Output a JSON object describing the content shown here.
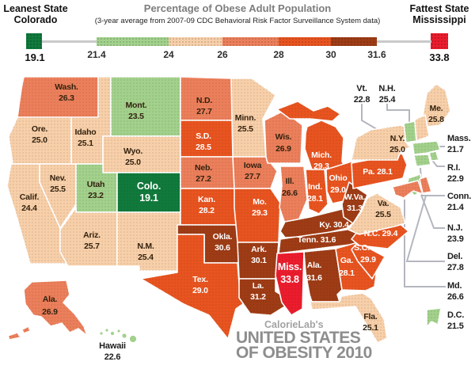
{
  "header": {
    "leanest": {
      "label": "Leanest State",
      "state": "Colorado",
      "value": "19.1"
    },
    "fattest": {
      "label": "Fattest State",
      "state": "Mississippi",
      "value": "33.8"
    },
    "title": "Percentage of Obese Adult Population",
    "subtitle": "(3-year average from 2007-09 CDC Behavioral Risk Factor Surveillance System data)",
    "ticks": [
      "21.4",
      "24",
      "26",
      "28",
      "30",
      "31.6"
    ]
  },
  "colors": {
    "green_dark": "#107a3c",
    "green_light": "#a2d18c",
    "peach": "#f7cfa9",
    "salmon": "#ec7f5b",
    "orange": "#e85420",
    "brown": "#9e3c16",
    "red": "#eb1c2d",
    "leader": "#b4b7bf",
    "text_dark": "#33220f",
    "text_light": "#ffffff"
  },
  "footer": {
    "brand": "CalorieLab's",
    "line1": "UNITED STATES",
    "line2": "OF OBESITY 2010"
  },
  "states": [
    {
      "id": "WA",
      "label": "Wash.",
      "value": "26.3"
    },
    {
      "id": "OR",
      "label": "Ore.",
      "value": "25.0"
    },
    {
      "id": "CA",
      "label": "Calif.",
      "value": "24.4"
    },
    {
      "id": "NV",
      "label": "Nev.",
      "value": "25.5"
    },
    {
      "id": "ID",
      "label": "Idaho",
      "value": "25.1"
    },
    {
      "id": "MT",
      "label": "Mont.",
      "value": "23.5"
    },
    {
      "id": "WY",
      "label": "Wyo.",
      "value": "25.0"
    },
    {
      "id": "UT",
      "label": "Utah",
      "value": "23.2"
    },
    {
      "id": "CO",
      "label": "Colo.",
      "value": "19.1"
    },
    {
      "id": "AZ",
      "label": "Ariz.",
      "value": "25.7"
    },
    {
      "id": "NM",
      "label": "N.M.",
      "value": "25.4"
    },
    {
      "id": "ND",
      "label": "N.D.",
      "value": "27.7"
    },
    {
      "id": "SD",
      "label": "S.D.",
      "value": "28.5"
    },
    {
      "id": "NE",
      "label": "Neb.",
      "value": "27.2"
    },
    {
      "id": "KS",
      "label": "Kan.",
      "value": "28.2"
    },
    {
      "id": "OK",
      "label": "Okla.",
      "value": "30.6"
    },
    {
      "id": "TX",
      "label": "Tex.",
      "value": "29.0"
    },
    {
      "id": "MN",
      "label": "Minn.",
      "value": "25.5"
    },
    {
      "id": "IA",
      "label": "Iowa",
      "value": "27.7"
    },
    {
      "id": "MO",
      "label": "Mo.",
      "value": "29.3"
    },
    {
      "id": "AR",
      "label": "Ark.",
      "value": "30.1"
    },
    {
      "id": "LA",
      "label": "La.",
      "value": "31.2"
    },
    {
      "id": "WI",
      "label": "Wis.",
      "value": "26.9"
    },
    {
      "id": "IL",
      "label": "Ill.",
      "value": "26.6"
    },
    {
      "id": "IN",
      "label": "Ind.",
      "value": "28.1"
    },
    {
      "id": "MI",
      "label": "Mich.",
      "value": "29.3"
    },
    {
      "id": "OH",
      "label": "Ohio",
      "value": "29.0"
    },
    {
      "id": "KY",
      "label": "Ky.",
      "value": "30.4"
    },
    {
      "id": "TN",
      "label": "Tenn.",
      "value": "31.6"
    },
    {
      "id": "MS",
      "label": "Miss.",
      "value": "33.8"
    },
    {
      "id": "AL",
      "label": "Ala.",
      "value": "31.6"
    },
    {
      "id": "GA",
      "label": "Ga.",
      "value": "28.1"
    },
    {
      "id": "SC",
      "label": "S.C.",
      "value": "29.9"
    },
    {
      "id": "NC",
      "label": "N.C.",
      "value": "29.4"
    },
    {
      "id": "VA",
      "label": "Va.",
      "value": "25.5"
    },
    {
      "id": "WV",
      "label": "W.Va.",
      "value": "31.3"
    },
    {
      "id": "PA",
      "label": "Pa.",
      "value": "28.1"
    },
    {
      "id": "NY",
      "label": "N.Y.",
      "value": "25.0"
    },
    {
      "id": "ME",
      "label": "Me.",
      "value": "25.8"
    },
    {
      "id": "VT",
      "label": "Vt.",
      "value": "22.8"
    },
    {
      "id": "NH",
      "label": "N.H.",
      "value": "25.4"
    },
    {
      "id": "MA",
      "label": "Mass.",
      "value": "21.7"
    },
    {
      "id": "RI",
      "label": "R.I.",
      "value": "22.9"
    },
    {
      "id": "CT",
      "label": "Conn.",
      "value": "21.4"
    },
    {
      "id": "NJ",
      "label": "N.J.",
      "value": "23.9"
    },
    {
      "id": "DE",
      "label": "Del.",
      "value": "27.8"
    },
    {
      "id": "MD",
      "label": "Md.",
      "value": "26.6"
    },
    {
      "id": "DC",
      "label": "D.C.",
      "value": "21.5"
    },
    {
      "id": "FL",
      "label": "Fla.",
      "value": "25.1"
    },
    {
      "id": "AK",
      "label": "Ala.",
      "value": "26.9"
    },
    {
      "id": "HI",
      "label": "Hawaii",
      "value": "22.6"
    }
  ],
  "chart_data": {
    "type": "choropleth-map",
    "title": "United States of Obesity 2010",
    "measure": "Percentage of Obese Adult Population",
    "source_note": "(3-year average from 2007-09 CDC Behavioral Risk Factor Surveillance System data)",
    "scale_ticks": [
      21.4,
      24,
      26,
      28,
      30,
      31.6
    ],
    "min": {
      "state": "Colorado",
      "value": 19.1
    },
    "max": {
      "state": "Mississippi",
      "value": 33.8
    }
  }
}
